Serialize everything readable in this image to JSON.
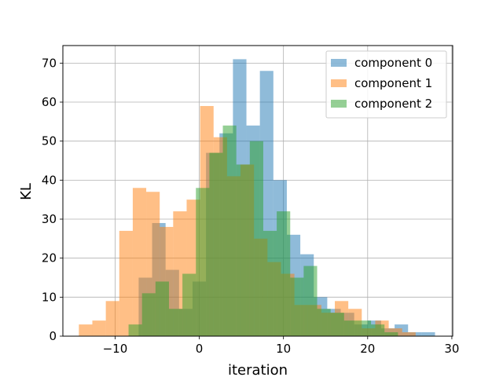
{
  "chart_data": {
    "type": "bar",
    "xlabel": "iteration",
    "ylabel": "KL",
    "xlim": [
      -16.2,
      30.1
    ],
    "ylim": [
      0,
      74.5
    ],
    "xticks": [
      -10,
      0,
      10,
      20,
      30
    ],
    "xtick_labels": [
      "−10",
      "0",
      "10",
      "20",
      "30"
    ],
    "yticks": [
      0,
      10,
      20,
      30,
      40,
      50,
      60,
      70
    ],
    "ytick_labels": [
      "0",
      "10",
      "20",
      "30",
      "40",
      "50",
      "60",
      "70"
    ],
    "grid": true,
    "legend_position": "top-right",
    "series": [
      {
        "name": "component 0",
        "color": "#1f77b4",
        "opacity": 0.5,
        "bins": [
          [
            -7.2,
            -5.6,
            15
          ],
          [
            -5.6,
            -4.0,
            29
          ],
          [
            -4.0,
            -2.4,
            17
          ],
          [
            -2.4,
            -0.8,
            7
          ],
          [
            -0.8,
            0.8,
            14
          ],
          [
            0.8,
            2.4,
            47
          ],
          [
            2.4,
            4.0,
            52
          ],
          [
            4.0,
            5.6,
            71
          ],
          [
            5.6,
            7.2,
            54
          ],
          [
            7.2,
            8.8,
            68
          ],
          [
            8.8,
            10.4,
            40
          ],
          [
            10.4,
            12.0,
            26
          ],
          [
            12.0,
            13.6,
            21
          ],
          [
            13.6,
            15.2,
            10
          ],
          [
            15.2,
            16.8,
            7
          ],
          [
            16.8,
            18.4,
            6
          ],
          [
            18.4,
            20.0,
            3
          ],
          [
            20.0,
            21.6,
            4
          ],
          [
            21.6,
            23.2,
            2
          ],
          [
            23.2,
            24.8,
            3
          ],
          [
            24.8,
            26.4,
            1
          ],
          [
            26.4,
            28.0,
            1
          ]
        ]
      },
      {
        "name": "component 1",
        "color": "#ff7f0e",
        "opacity": 0.5,
        "bins": [
          [
            -14.3,
            -12.7,
            3
          ],
          [
            -12.7,
            -11.1,
            4
          ],
          [
            -11.1,
            -9.5,
            9
          ],
          [
            -9.5,
            -7.9,
            27
          ],
          [
            -7.9,
            -6.3,
            38
          ],
          [
            -6.3,
            -4.7,
            37
          ],
          [
            -4.7,
            -3.1,
            28
          ],
          [
            -3.1,
            -1.5,
            32
          ],
          [
            -1.5,
            0.1,
            35
          ],
          [
            0.1,
            1.7,
            59
          ],
          [
            1.7,
            3.3,
            51
          ],
          [
            3.3,
            4.9,
            41
          ],
          [
            4.9,
            6.5,
            44
          ],
          [
            6.5,
            8.1,
            25
          ],
          [
            8.1,
            9.7,
            19
          ],
          [
            9.7,
            11.3,
            16
          ],
          [
            11.3,
            12.9,
            8
          ],
          [
            12.9,
            14.5,
            8
          ],
          [
            14.5,
            16.1,
            6
          ],
          [
            16.1,
            17.7,
            9
          ],
          [
            17.7,
            19.3,
            7
          ],
          [
            19.3,
            20.9,
            2
          ],
          [
            20.9,
            22.5,
            4
          ],
          [
            22.5,
            24.1,
            2
          ],
          [
            24.1,
            25.7,
            1
          ]
        ]
      },
      {
        "name": "component 2",
        "color": "#2ca02c",
        "opacity": 0.5,
        "bins": [
          [
            -8.4,
            -6.8,
            3
          ],
          [
            -6.8,
            -5.2,
            11
          ],
          [
            -5.2,
            -3.6,
            14
          ],
          [
            -3.6,
            -2.0,
            7
          ],
          [
            -2.0,
            -0.4,
            16
          ],
          [
            -0.4,
            1.2,
            38
          ],
          [
            1.2,
            2.8,
            47
          ],
          [
            2.8,
            4.4,
            54
          ],
          [
            4.4,
            6.0,
            44
          ],
          [
            6.0,
            7.6,
            50
          ],
          [
            7.6,
            9.2,
            27
          ],
          [
            9.2,
            10.8,
            32
          ],
          [
            10.8,
            12.4,
            15
          ],
          [
            12.4,
            14.0,
            18
          ],
          [
            14.0,
            15.6,
            7
          ],
          [
            15.6,
            17.2,
            6
          ],
          [
            17.2,
            18.8,
            4
          ],
          [
            18.8,
            20.4,
            4
          ],
          [
            20.4,
            22.0,
            3
          ],
          [
            22.0,
            23.6,
            1
          ]
        ]
      }
    ]
  }
}
